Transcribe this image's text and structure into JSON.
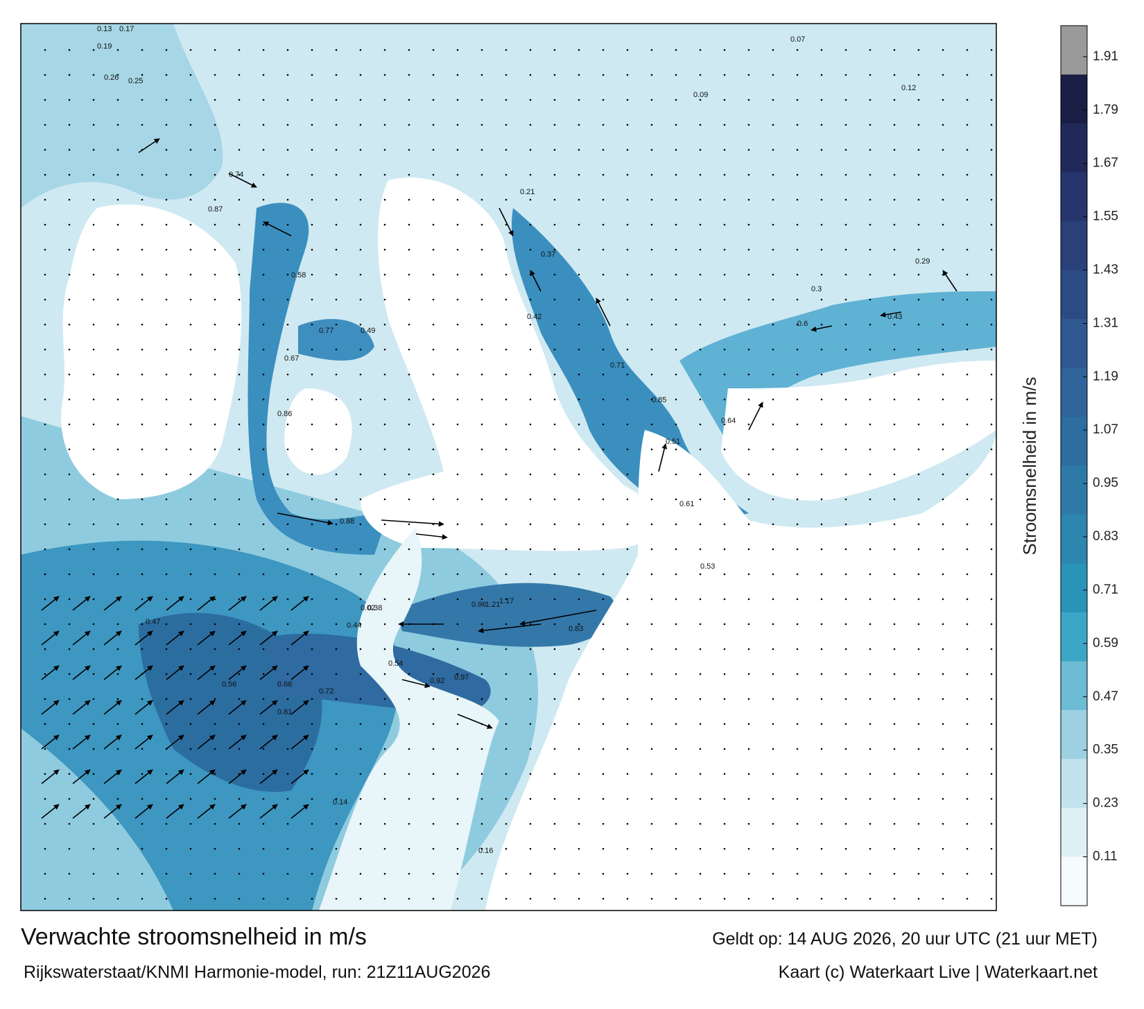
{
  "title": "Verwachte stroomsnelheid in m/s",
  "subtitle": "Rijkswaterstaat/KNMI Harmonie-model, run: 21Z11AUG2026",
  "valid_time": "Geldt op: 14 AUG 2026, 20 uur UTC (21 uur MET)",
  "credit": "Kaart (c) Waterkaart Live | Waterkaart.net",
  "colorbar": {
    "label": "Stroomsnelheid in m/s",
    "ylim": [
      0,
      1.98
    ],
    "yticks": [
      0.11,
      0.23,
      0.35,
      0.47,
      0.59,
      0.71,
      0.83,
      0.95,
      1.07,
      1.19,
      1.31,
      1.43,
      1.55,
      1.67,
      1.79,
      1.91
    ],
    "colors": [
      "#f6fbfd",
      "#dff0f6",
      "#c2e3ee",
      "#9dd1e2",
      "#6cbcd5",
      "#3ca6c7",
      "#2a93b8",
      "#2c86ae",
      "#2e7aa6",
      "#2d6da0",
      "#2f6399",
      "#2f5890",
      "#2c4b85",
      "#2a4079",
      "#26356b",
      "#21295a",
      "#1a1e44",
      "#9a9a9a"
    ]
  },
  "annotations": [
    "0.13",
    "0.17",
    "0.19",
    "0.26",
    "0.25",
    "0.74",
    "0.87",
    "0.67",
    "0.58",
    "0.49",
    "0.77",
    "0.86",
    "0.88",
    "0.21",
    "0.37",
    "0.42",
    "0.71",
    "0.85",
    "0.51",
    "0.64",
    "0.61",
    "0.53",
    "0.6",
    "0.29",
    "0.43",
    "0.66",
    "0.96",
    "1.21",
    "0.83",
    "0.92",
    "0.97",
    "0.56",
    "0.44",
    "0.38",
    "0.47",
    "0.72",
    "0.81",
    "0.54",
    "0.02",
    "0.14",
    "0.16",
    "0.07",
    "0.09",
    "0.12",
    "0.3",
    "1.17"
  ]
}
